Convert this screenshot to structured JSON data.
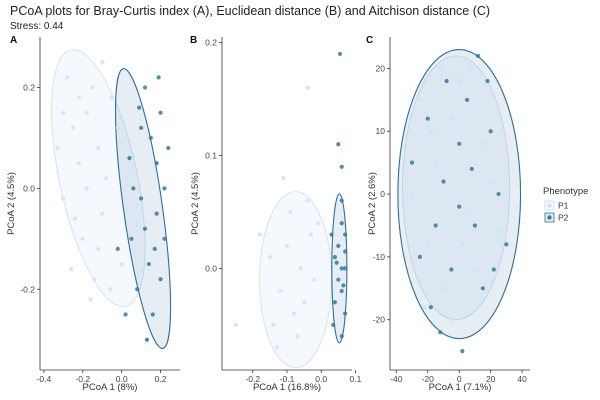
{
  "title": "PCoA plots for Bray-Curtis index (A), Euclidean distance (B) and Aitchison distance (C)",
  "subtitle": "Stress: 0.44",
  "colors": {
    "P1": "#cfe3f5",
    "P2": "#2f7aa3",
    "P1_ellipse": "#eef5fc",
    "P2_ellipse": "#2f6f99"
  },
  "legend": {
    "title": "Phenotype",
    "items": [
      "P1",
      "P2"
    ],
    "placement": "right"
  },
  "chart_data": [
    {
      "type": "scatter",
      "panel": "A",
      "xlabel": "PCoA 1 (8%)",
      "ylabel": "PCoA 2 (4.5%)",
      "xlim": [
        -0.42,
        0.3
      ],
      "ylim": [
        -0.36,
        0.3
      ],
      "xticks": [
        -0.4,
        -0.2,
        0.0,
        0.2
      ],
      "xtick_labels": [
        "-0.4",
        "-0.2",
        "0.0",
        "0.2"
      ],
      "yticks": [
        -0.2,
        0.0,
        0.2
      ],
      "ytick_labels": [
        "-0.2",
        "0.0",
        "0.2"
      ],
      "series": [
        {
          "name": "P1",
          "values": [
            [
              -0.28,
              0.22
            ],
            [
              -0.25,
              0.12
            ],
            [
              -0.22,
              0.05
            ],
            [
              -0.3,
              -0.02
            ],
            [
              -0.18,
              0.15
            ],
            [
              -0.15,
              0.2
            ],
            [
              -0.12,
              0.08
            ],
            [
              -0.1,
              -0.05
            ],
            [
              -0.2,
              -0.1
            ],
            [
              -0.26,
              -0.16
            ],
            [
              -0.14,
              -0.18
            ],
            [
              -0.05,
              0.18
            ],
            [
              -0.08,
              0.02
            ],
            [
              -0.33,
              0.08
            ],
            [
              -0.24,
              -0.06
            ],
            [
              -0.12,
              -0.12
            ],
            [
              -0.02,
              0.12
            ],
            [
              -0.18,
              0.0
            ],
            [
              -0.06,
              -0.2
            ],
            [
              -0.22,
              0.18
            ],
            [
              0.0,
              -0.15
            ],
            [
              -0.1,
              0.25
            ],
            [
              -0.16,
              -0.22
            ],
            [
              -0.3,
              0.15
            ]
          ]
        },
        {
          "name": "P2",
          "values": [
            [
              0.12,
              0.2
            ],
            [
              0.15,
              0.1
            ],
            [
              0.18,
              0.05
            ],
            [
              0.1,
              -0.02
            ],
            [
              0.2,
              0.15
            ],
            [
              0.22,
              0.0
            ],
            [
              0.05,
              -0.1
            ],
            [
              0.08,
              -0.2
            ],
            [
              0.14,
              -0.15
            ],
            [
              0.18,
              -0.05
            ],
            [
              0.2,
              -0.18
            ],
            [
              0.02,
              -0.25
            ],
            [
              0.1,
              0.12
            ],
            [
              0.24,
              0.08
            ],
            [
              0.06,
              0.0
            ],
            [
              0.16,
              -0.25
            ],
            [
              0.12,
              -0.08
            ],
            [
              0.19,
              0.22
            ],
            [
              0.13,
              -0.3
            ],
            [
              -0.02,
              -0.12
            ],
            [
              0.22,
              -0.1
            ],
            [
              0.04,
              0.06
            ],
            [
              0.09,
              0.16
            ],
            [
              0.17,
              -0.12
            ]
          ]
        }
      ],
      "ellipses": [
        {
          "name": "P1",
          "cx": -0.12,
          "cy": 0.02,
          "rx": 0.2,
          "ry": 0.26,
          "angle_deg": 12
        },
        {
          "name": "P2",
          "cx": 0.11,
          "cy": -0.04,
          "rx": 0.1,
          "ry": 0.28,
          "angle_deg": 8
        }
      ]
    },
    {
      "type": "scatter",
      "panel": "B",
      "xlabel": "PCoA 1 (16.8%)",
      "ylabel": "PCoA 2 (4.5%)",
      "xlim": [
        -0.29,
        0.09
      ],
      "ylim": [
        -0.09,
        0.205
      ],
      "xticks": [
        -0.2,
        -0.1,
        0.0,
        0.1
      ],
      "xtick_labels": [
        "-0.2",
        "-0.1",
        "0.0",
        "0.1"
      ],
      "yticks": [
        0.0,
        0.1,
        0.2
      ],
      "ytick_labels": [
        "0.0",
        "0.1",
        "0.2"
      ],
      "series": [
        {
          "name": "P1",
          "values": [
            [
              -0.1,
              0.02
            ],
            [
              -0.06,
              0.0
            ],
            [
              -0.12,
              -0.02
            ],
            [
              -0.03,
              0.03
            ],
            [
              -0.08,
              -0.04
            ],
            [
              -0.15,
              0.01
            ],
            [
              -0.05,
              -0.03
            ],
            [
              -0.02,
              -0.01
            ],
            [
              -0.09,
              0.05
            ],
            [
              -0.14,
              -0.05
            ],
            [
              -0.04,
              0.06
            ],
            [
              -0.07,
              -0.06
            ],
            [
              -0.25,
              -0.05
            ],
            [
              -0.04,
              0.16
            ],
            [
              -0.18,
              0.03
            ],
            [
              -0.11,
              0.08
            ],
            [
              -0.01,
              0.04
            ],
            [
              -0.13,
              -0.07
            ]
          ]
        },
        {
          "name": "P2",
          "values": [
            [
              0.06,
              0.04
            ],
            [
              0.05,
              0.02
            ],
            [
              0.07,
              0.0
            ],
            [
              0.06,
              -0.02
            ],
            [
              0.04,
              0.01
            ],
            [
              0.07,
              0.03
            ],
            [
              0.05,
              -0.01
            ],
            [
              0.06,
              0.06
            ],
            [
              0.07,
              -0.04
            ],
            [
              0.04,
              -0.03
            ],
            [
              0.06,
              0.09
            ],
            [
              0.055,
              0.19
            ],
            [
              0.05,
              0.11
            ],
            [
              0.06,
              0.0
            ],
            [
              0.07,
              0.015
            ],
            [
              0.045,
              0.005
            ],
            [
              0.065,
              -0.015
            ],
            [
              0.03,
              0.03
            ],
            [
              0.035,
              -0.05
            ],
            [
              0.06,
              -0.06
            ]
          ]
        }
      ],
      "ellipses": [
        {
          "name": "P1",
          "cx": -0.075,
          "cy": -0.01,
          "rx": 0.105,
          "ry": 0.078,
          "angle_deg": 0
        },
        {
          "name": "P2",
          "cx": 0.053,
          "cy": 0.0,
          "rx": 0.022,
          "ry": 0.066,
          "angle_deg": 0
        }
      ]
    },
    {
      "type": "scatter",
      "panel": "C",
      "xlabel": "PCoA 1 (7.1%)",
      "ylabel": "PCoA 2 (2.6%)",
      "xlim": [
        -44,
        45
      ],
      "ylim": [
        -28,
        25
      ],
      "xticks": [
        -40,
        -20,
        0,
        20,
        40
      ],
      "xtick_labels": [
        "-40",
        "-20",
        "0",
        "20",
        "40"
      ],
      "yticks": [
        -20,
        -10,
        0,
        10,
        20
      ],
      "ytick_labels": [
        "-20",
        "-10",
        "0",
        "10",
        "20"
      ],
      "series": [
        {
          "name": "P1",
          "values": [
            [
              -25,
              15
            ],
            [
              -15,
              5
            ],
            [
              -5,
              12
            ],
            [
              5,
              -3
            ],
            [
              15,
              8
            ],
            [
              -20,
              -8
            ],
            [
              -10,
              -15
            ],
            [
              0,
              18
            ],
            [
              10,
              -12
            ],
            [
              20,
              2
            ],
            [
              -30,
              0
            ],
            [
              25,
              -6
            ],
            [
              -5,
              -20
            ],
            [
              8,
              20
            ],
            [
              -18,
              10
            ],
            [
              12,
              -18
            ],
            [
              -22,
              -18
            ],
            [
              2,
              -8
            ],
            [
              -12,
              20
            ],
            [
              28,
              10
            ]
          ]
        },
        {
          "name": "P2",
          "values": [
            [
              -20,
              12
            ],
            [
              -10,
              2
            ],
            [
              0,
              8
            ],
            [
              10,
              -5
            ],
            [
              20,
              10
            ],
            [
              -25,
              -10
            ],
            [
              -15,
              -5
            ],
            [
              5,
              15
            ],
            [
              15,
              -15
            ],
            [
              25,
              0
            ],
            [
              -5,
              -12
            ],
            [
              0,
              -2
            ],
            [
              -30,
              5
            ],
            [
              30,
              -8
            ],
            [
              8,
              4
            ],
            [
              -8,
              18
            ],
            [
              18,
              18
            ],
            [
              -18,
              -18
            ],
            [
              12,
              22
            ],
            [
              2,
              -25
            ],
            [
              -12,
              -22
            ],
            [
              22,
              -12
            ]
          ]
        }
      ],
      "ellipses": [
        {
          "name": "P1",
          "cx": -2,
          "cy": 1,
          "rx": 34,
          "ry": 21,
          "angle_deg": 0
        },
        {
          "name": "P2",
          "cx": 0,
          "cy": 0,
          "rx": 39,
          "ry": 23,
          "angle_deg": 0
        }
      ]
    }
  ]
}
